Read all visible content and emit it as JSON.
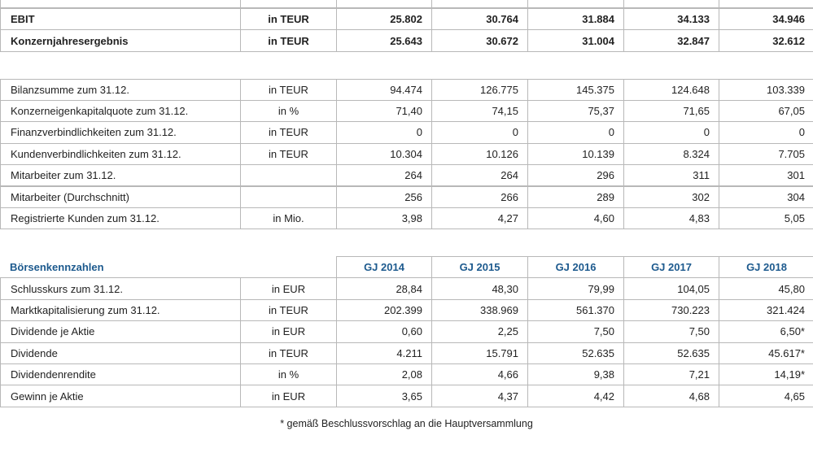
{
  "sections": [
    {
      "rows": [
        {
          "label": "EBIT",
          "unit": "in TEUR",
          "values": [
            "25.802",
            "30.764",
            "31.884",
            "34.133",
            "34.946"
          ]
        },
        {
          "label": "Konzernjahresergebnis",
          "unit": "in TEUR",
          "values": [
            "25.643",
            "30.672",
            "31.004",
            "32.847",
            "32.612"
          ]
        }
      ]
    },
    {
      "rows": [
        {
          "label": "Bilanzsumme zum 31.12.",
          "unit": "in TEUR",
          "values": [
            "94.474",
            "126.775",
            "145.375",
            "124.648",
            "103.339"
          ]
        },
        {
          "label": "Konzerneigenkapitalquote zum 31.12.",
          "unit": "in %",
          "values": [
            "71,40",
            "74,15",
            "75,37",
            "71,65",
            "67,05"
          ]
        },
        {
          "label": "Finanzverbindlichkeiten zum 31.12.",
          "unit": "in TEUR",
          "values": [
            "0",
            "0",
            "0",
            "0",
            "0"
          ]
        },
        {
          "label": "Kundenverbindlichkeiten zum 31.12.",
          "unit": "in TEUR",
          "values": [
            "10.304",
            "10.126",
            "10.139",
            "8.324",
            "7.705"
          ]
        },
        {
          "label": "Mitarbeiter zum 31.12.",
          "values": [
            "264",
            "264",
            "296",
            "311",
            "301"
          ]
        },
        {
          "label": "Mitarbeiter (Durchschnitt)",
          "values": [
            "256",
            "266",
            "289",
            "302",
            "304"
          ]
        },
        {
          "label": "Registrierte Kunden zum 31.12.",
          "unit": "in Mio.",
          "values": [
            "3,98",
            "4,27",
            "4,60",
            "4,83",
            "5,05"
          ]
        }
      ]
    },
    {
      "title": "Börsenkennzahlen",
      "headers": [
        "GJ 2014",
        "GJ 2015",
        "GJ 2016",
        "GJ 2017",
        "GJ 2018"
      ],
      "rows": [
        {
          "label": "Schlusskurs zum 31.12.",
          "unit": "in EUR",
          "values": [
            "28,84",
            "48,30",
            "79,99",
            "104,05",
            "45,80"
          ]
        },
        {
          "label": "Marktkapitalisierung zum 31.12.",
          "unit": "in TEUR",
          "values": [
            "202.399",
            "338.969",
            "561.370",
            "730.223",
            "321.424"
          ]
        },
        {
          "label": "Dividende je Aktie",
          "unit": "in EUR",
          "values": [
            "0,60",
            "2,25",
            "7,50",
            "7,50",
            "6,50*"
          ]
        },
        {
          "label": "Dividende",
          "unit": "in TEUR",
          "values": [
            "4.211",
            "15.791",
            "52.635",
            "52.635",
            "45.617*"
          ]
        },
        {
          "label": "Dividendenrendite",
          "unit": "in %",
          "values": [
            "2,08",
            "4,66",
            "9,38",
            "7,21",
            "14,19*"
          ]
        },
        {
          "label": "Gewinn je Aktie",
          "unit": "in EUR",
          "values": [
            "3,65",
            "4,37",
            "4,42",
            "4,68",
            "4,65"
          ]
        }
      ]
    }
  ],
  "footnote": "* gemäß Beschlussvorschlag an die Hauptversammlung"
}
